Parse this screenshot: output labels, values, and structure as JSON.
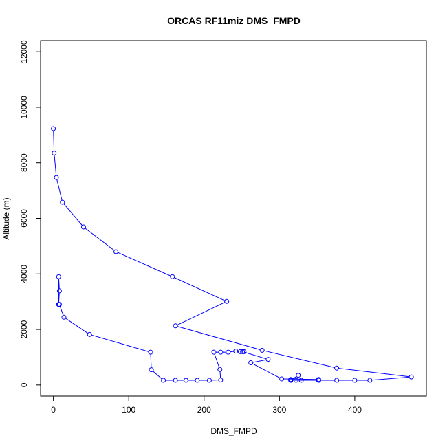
{
  "chart_data": {
    "type": "line",
    "title": "ORCAS RF11miz DMS_FMPD",
    "xlabel": "DMS_FMPD",
    "ylabel": "Altitude (m)",
    "xlim": [
      -17,
      495
    ],
    "ylim": [
      -400,
      12400
    ],
    "x_ticks": [
      0,
      100,
      200,
      300,
      400
    ],
    "x_tick_labels": [
      "0",
      "100",
      "200",
      "300",
      "400"
    ],
    "y_ticks": [
      0,
      2000,
      4000,
      6000,
      8000,
      10000,
      12000
    ],
    "y_tick_labels": [
      "0",
      "2000",
      "4000",
      "6000",
      "8000",
      "10000",
      "12000"
    ],
    "grid": false,
    "line_color": "#0000ff",
    "marker": "open-circle",
    "series": [
      {
        "x": [
          0,
          1,
          4,
          12,
          40,
          83,
          158,
          230,
          162,
          277,
          376,
          475,
          420,
          400,
          376,
          352,
          329,
          315,
          315,
          315,
          322,
          325,
          315,
          352,
          352,
          303,
          262,
          285,
          251,
          253,
          248,
          242,
          232,
          222,
          213,
          221,
          222,
          207,
          191,
          176,
          162,
          146,
          130,
          129,
          48,
          14,
          8,
          7,
          8,
          7,
          7
        ],
        "y": [
          9230,
          8350,
          7470,
          6580,
          5690,
          4800,
          3900,
          3010,
          2130,
          1250,
          610,
          290,
          170,
          170,
          170,
          170,
          170,
          170,
          200,
          170,
          170,
          350,
          170,
          170,
          200,
          220,
          800,
          920,
          1200,
          1200,
          1200,
          1220,
          1180,
          1180,
          1180,
          560,
          180,
          170,
          170,
          170,
          170,
          170,
          550,
          1180,
          1820,
          2440,
          2900,
          2900,
          3390,
          3900,
          2900
        ]
      }
    ]
  }
}
